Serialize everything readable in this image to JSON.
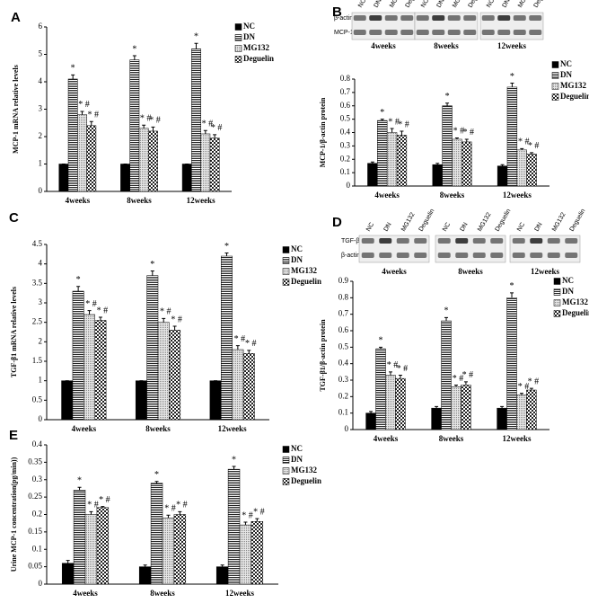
{
  "chart_data": [
    {
      "type": "bar",
      "panel": "A",
      "ylabel": "MCP-1 mRNA relative levels",
      "categories": [
        "4weeks",
        "8weeks",
        "12weeks"
      ],
      "ylim": [
        0,
        6
      ],
      "yticks": [
        0,
        1,
        2,
        3,
        4,
        5,
        6
      ],
      "series": [
        {
          "name": "NC",
          "fill": "solid",
          "values": [
            1,
            1,
            1
          ],
          "errors": [
            0,
            0,
            0
          ],
          "annotations": [
            null,
            null,
            null
          ]
        },
        {
          "name": "DN",
          "fill": "hlines",
          "values": [
            4.1,
            4.8,
            5.2
          ],
          "errors": [
            0.15,
            0.15,
            0.2
          ],
          "annotations": [
            "*",
            "*",
            "*"
          ]
        },
        {
          "name": "MG132",
          "fill": "dots",
          "values": [
            2.8,
            2.3,
            2.1
          ],
          "errors": [
            0.12,
            0.12,
            0.12
          ],
          "annotations": [
            "* #",
            "* #",
            "* #"
          ]
        },
        {
          "name": "Deguelin",
          "fill": "checks",
          "values": [
            2.4,
            2.2,
            1.95
          ],
          "errors": [
            0.15,
            0.15,
            0.12
          ],
          "annotations": [
            "* #",
            "* #",
            "* #"
          ]
        }
      ]
    },
    {
      "type": "bar",
      "panel": "B",
      "ylabel": "MCP-1/β-actin protein",
      "blot": {
        "rows": [
          "β-actin",
          "MCP-1"
        ],
        "lanes": [
          "NC",
          "DN",
          "MG132",
          "Deguelin"
        ],
        "groups": [
          "4weeks",
          "8weeks",
          "12weeks"
        ]
      },
      "categories": [
        "4weeks",
        "8weeks",
        "12weeks"
      ],
      "ylim": [
        0,
        0.8
      ],
      "yticks": [
        0,
        0.1,
        0.2,
        0.3,
        0.4,
        0.5,
        0.6,
        0.7,
        0.8
      ],
      "series": [
        {
          "name": "NC",
          "fill": "solid",
          "values": [
            0.17,
            0.16,
            0.15
          ],
          "errors": [
            0.01,
            0.01,
            0.01
          ],
          "annotations": [
            null,
            null,
            null
          ]
        },
        {
          "name": "DN",
          "fill": "hlines",
          "values": [
            0.49,
            0.6,
            0.74
          ],
          "errors": [
            0.01,
            0.02,
            0.03
          ],
          "annotations": [
            "*",
            "*",
            "*"
          ]
        },
        {
          "name": "MG132",
          "fill": "dots",
          "values": [
            0.4,
            0.35,
            0.27
          ],
          "errors": [
            0.03,
            0.01,
            0.01
          ],
          "annotations": [
            "* #",
            "* #",
            "* #"
          ]
        },
        {
          "name": "Deguelin",
          "fill": "checks",
          "values": [
            0.38,
            0.33,
            0.24
          ],
          "errors": [
            0.03,
            0.02,
            0.01
          ],
          "annotations": [
            "* #",
            "* #",
            "* #"
          ]
        }
      ]
    },
    {
      "type": "bar",
      "panel": "C",
      "ylabel": "TGF-β1 mRNA relative levels",
      "categories": [
        "4weeks",
        "8weeks",
        "12weeks"
      ],
      "ylim": [
        0,
        4.5
      ],
      "yticks": [
        0,
        0.5,
        1,
        1.5,
        2,
        2.5,
        3,
        3.5,
        4,
        4.5
      ],
      "series": [
        {
          "name": "NC",
          "fill": "solid",
          "values": [
            1,
            1,
            1
          ],
          "errors": [
            0,
            0,
            0
          ],
          "annotations": [
            null,
            null,
            null
          ]
        },
        {
          "name": "DN",
          "fill": "hlines",
          "values": [
            3.3,
            3.7,
            4.2
          ],
          "errors": [
            0.12,
            0.12,
            0.08
          ],
          "annotations": [
            "*",
            "*",
            "*"
          ]
        },
        {
          "name": "MG132",
          "fill": "dots",
          "values": [
            2.7,
            2.5,
            1.8
          ],
          "errors": [
            0.1,
            0.1,
            0.1
          ],
          "annotations": [
            "* #",
            "* #",
            "* #"
          ]
        },
        {
          "name": "Deguelin",
          "fill": "checks",
          "values": [
            2.55,
            2.3,
            1.7
          ],
          "errors": [
            0.08,
            0.1,
            0.08
          ],
          "annotations": [
            "* #",
            "* #",
            "* #"
          ]
        }
      ]
    },
    {
      "type": "bar",
      "panel": "D",
      "ylabel": "TGF-β1/β-actin protein",
      "blot": {
        "rows": [
          "TGF-β1",
          "β-actin"
        ],
        "lanes": [
          "NC",
          "DN",
          "MG132",
          "Deguelin"
        ],
        "groups": [
          "4weeks",
          "8weeks",
          "12weeks"
        ]
      },
      "categories": [
        "4weeks",
        "8weeks",
        "12weeks"
      ],
      "ylim": [
        0,
        0.9
      ],
      "yticks": [
        0,
        0.1,
        0.2,
        0.3,
        0.4,
        0.5,
        0.6,
        0.7,
        0.8,
        0.9
      ],
      "series": [
        {
          "name": "NC",
          "fill": "solid",
          "values": [
            0.1,
            0.13,
            0.13
          ],
          "errors": [
            0.01,
            0.01,
            0.01
          ],
          "annotations": [
            null,
            null,
            null
          ]
        },
        {
          "name": "DN",
          "fill": "hlines",
          "values": [
            0.49,
            0.66,
            0.8
          ],
          "errors": [
            0.01,
            0.02,
            0.03
          ],
          "annotations": [
            "*",
            "*",
            "*"
          ]
        },
        {
          "name": "MG132",
          "fill": "dots",
          "values": [
            0.33,
            0.26,
            0.21
          ],
          "errors": [
            0.02,
            0.01,
            0.01
          ],
          "annotations": [
            "* #",
            "* #",
            "* #"
          ]
        },
        {
          "name": "Deguelin",
          "fill": "checks",
          "values": [
            0.31,
            0.27,
            0.24
          ],
          "errors": [
            0.02,
            0.02,
            0.01
          ],
          "annotations": [
            "* #",
            "* #",
            "* #"
          ]
        }
      ]
    },
    {
      "type": "bar",
      "panel": "E",
      "ylabel": "Urine MCP-1 concentration(pg/min))",
      "categories": [
        "4weeks",
        "8weeks",
        "12weeks"
      ],
      "ylim": [
        0,
        0.4
      ],
      "yticks": [
        0,
        0.05,
        0.1,
        0.15,
        0.2,
        0.25,
        0.3,
        0.35,
        0.4
      ],
      "series": [
        {
          "name": "NC",
          "fill": "solid",
          "values": [
            0.06,
            0.05,
            0.05
          ],
          "errors": [
            0.008,
            0.005,
            0.005
          ],
          "annotations": [
            null,
            null,
            null
          ]
        },
        {
          "name": "DN",
          "fill": "hlines",
          "values": [
            0.27,
            0.29,
            0.33
          ],
          "errors": [
            0.008,
            0.005,
            0.008
          ],
          "annotations": [
            "*",
            "*",
            "*"
          ]
        },
        {
          "name": "MG132",
          "fill": "dots",
          "values": [
            0.2,
            0.19,
            0.17
          ],
          "errors": [
            0.008,
            0.008,
            0.008
          ],
          "annotations": [
            "* #",
            "* #",
            "* #"
          ]
        },
        {
          "name": "Deguelin",
          "fill": "checks",
          "values": [
            0.22,
            0.2,
            0.18
          ],
          "errors": [
            0.003,
            0.008,
            0.008
          ],
          "annotations": [
            "* #",
            "* #",
            "* #"
          ]
        }
      ]
    }
  ]
}
